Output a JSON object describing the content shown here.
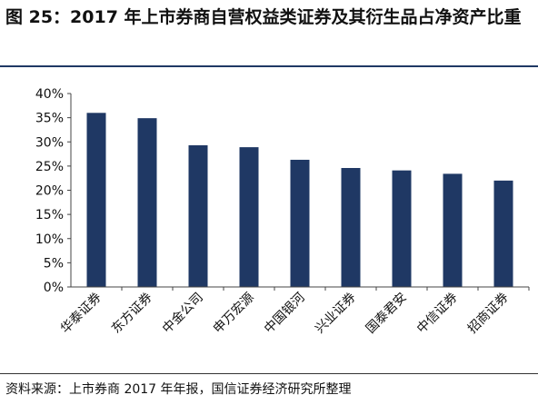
{
  "title": "图 25：2017 年上市券商自营权益类证券及其衍生品占净资产比重",
  "source": "资料来源：上市券商 2017 年年报，国信证券经济研究所整理",
  "colors": {
    "bar": "#1f3864",
    "axis": "#444444",
    "rule": "#1f3864"
  },
  "chart_data": {
    "type": "bar",
    "categories": [
      "华泰证券",
      "东方证券",
      "中金公司",
      "申万宏源",
      "中国银河",
      "兴业证券",
      "国泰君安",
      "中信证券",
      "招商证券"
    ],
    "values": [
      36.0,
      34.9,
      29.3,
      28.9,
      26.3,
      24.6,
      24.1,
      23.4,
      22.0
    ],
    "ylim": [
      0,
      40
    ],
    "yticks": [
      "0%",
      "5%",
      "10%",
      "15%",
      "20%",
      "25%",
      "30%",
      "35%",
      "40%"
    ],
    "grid": false,
    "legend": "none"
  }
}
